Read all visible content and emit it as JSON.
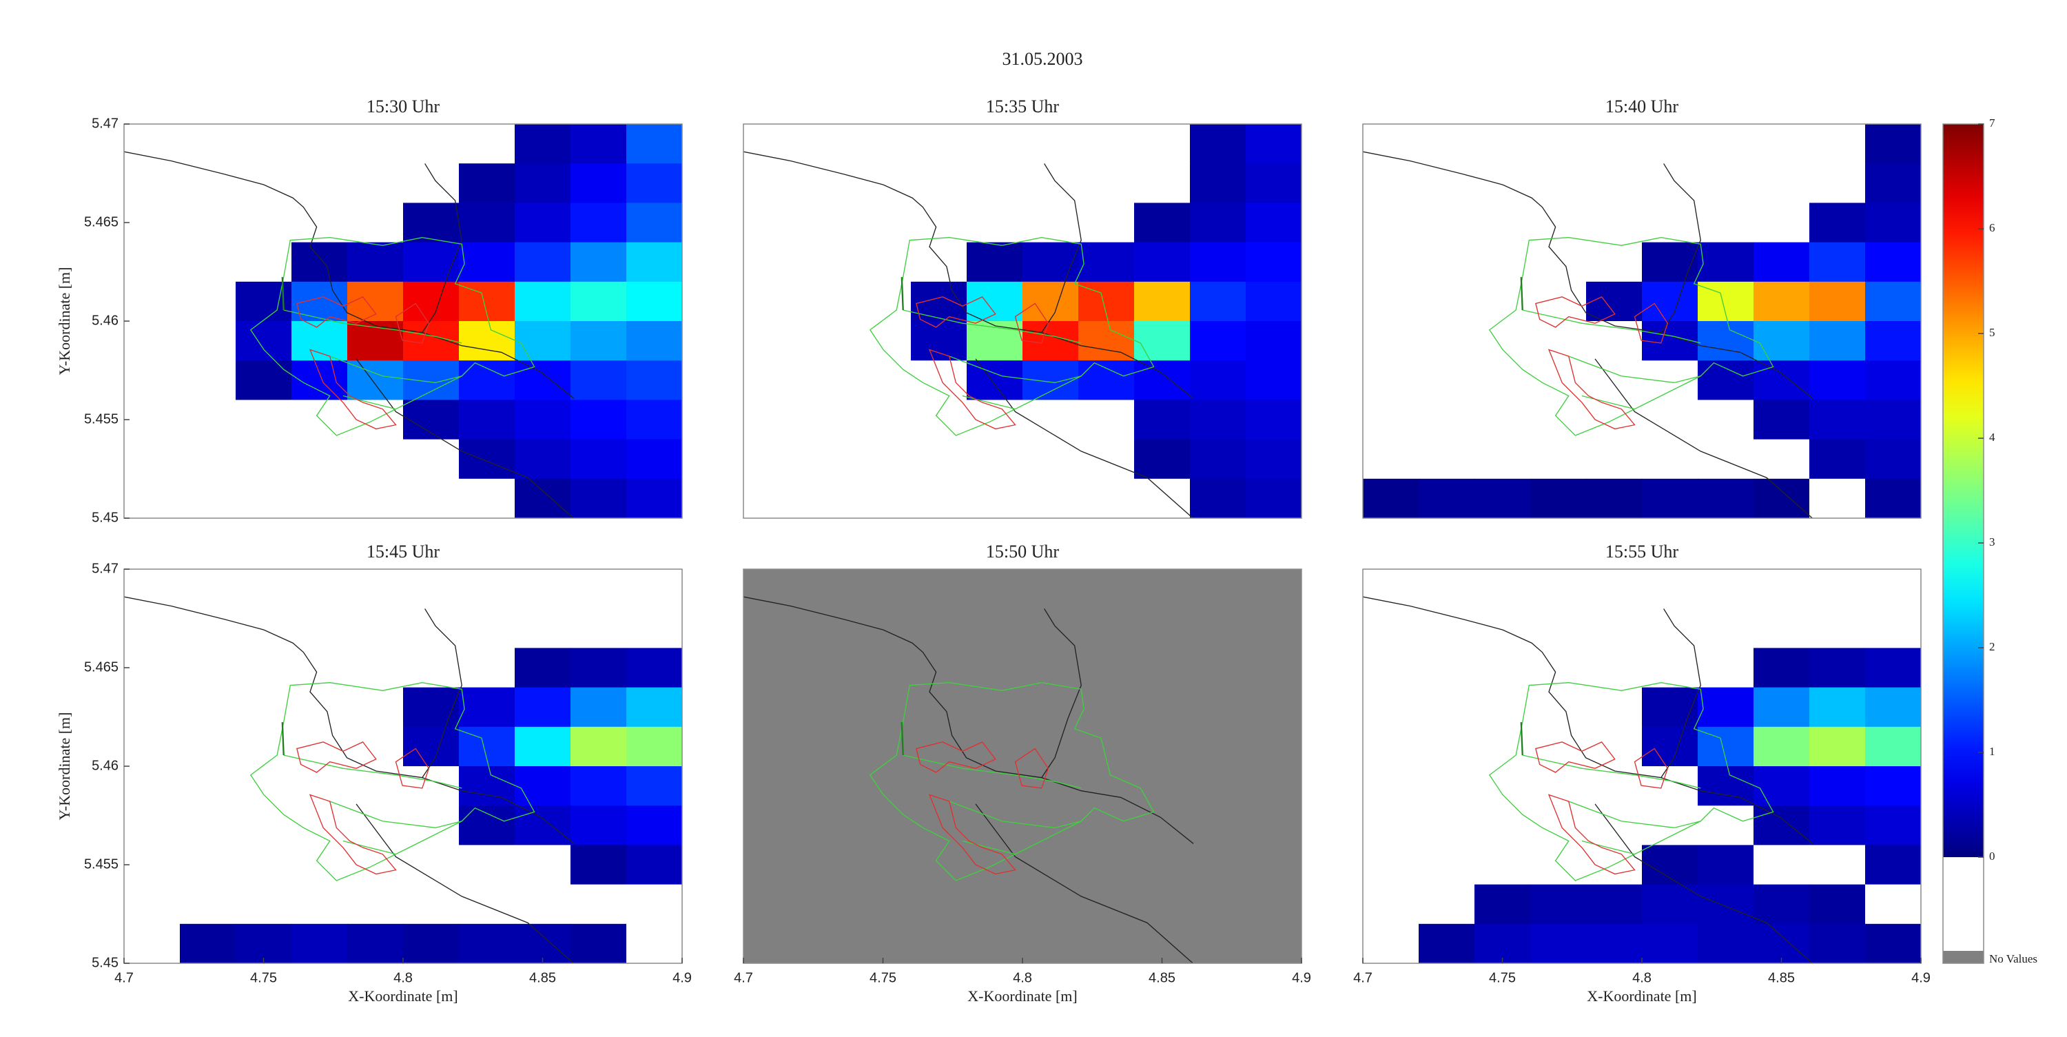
{
  "title": "31.05.2003",
  "colorbar": {
    "colormap": "jet",
    "clim": [
      0,
      7
    ],
    "ticks": [
      0,
      1,
      2,
      3,
      4,
      5,
      6,
      7
    ],
    "below_color": "#ffffff",
    "no_values_color": "#808080",
    "no_values_label": "No Values"
  },
  "chart_data": [
    {
      "type": "heatmap",
      "title": "15:30 Uhr",
      "ylabel": "Y-Koordinate [m]",
      "xlim": [
        4.7,
        4.9
      ],
      "ylim": [
        5.45,
        5.47
      ],
      "yticks": [
        5.45,
        5.455,
        5.46,
        5.465,
        5.47
      ],
      "x": [
        4.71,
        4.73,
        4.75,
        4.77,
        4.79,
        4.81,
        4.83,
        4.85,
        4.87,
        4.89
      ],
      "y": [
        5.469,
        5.467,
        5.465,
        5.463,
        5.461,
        5.459,
        5.457,
        5.455,
        5.453,
        5.451
      ],
      "values": [
        [
          0,
          0,
          0,
          0,
          0,
          0,
          0,
          0.3,
          0.5,
          1.5
        ],
        [
          0,
          0,
          0,
          0,
          0,
          0,
          0.2,
          0.4,
          0.8,
          1.2
        ],
        [
          0,
          0,
          0,
          0,
          0,
          0.2,
          0.3,
          0.6,
          1.0,
          1.5
        ],
        [
          0,
          0,
          0,
          0.2,
          0.4,
          0.6,
          0.8,
          1.2,
          1.8,
          2.3
        ],
        [
          0,
          0,
          0.3,
          1.5,
          5.5,
          6.2,
          5.8,
          2.5,
          2.8,
          2.6
        ],
        [
          0,
          0,
          0.5,
          2.5,
          6.5,
          6.0,
          4.5,
          2.2,
          2.0,
          1.8
        ],
        [
          0,
          0,
          0.2,
          0.8,
          1.8,
          1.5,
          1.0,
          0.9,
          1.2,
          1.3
        ],
        [
          0,
          0,
          0,
          0,
          0,
          0.3,
          0.5,
          0.7,
          0.9,
          1.0
        ],
        [
          0,
          0,
          0,
          0,
          0,
          0,
          0.3,
          0.5,
          0.7,
          0.8
        ],
        [
          0,
          0,
          0,
          0,
          0,
          0,
          0,
          0.2,
          0.4,
          0.6
        ]
      ]
    },
    {
      "type": "heatmap",
      "title": "15:35 Uhr",
      "xlim": [
        4.7,
        4.9
      ],
      "ylim": [
        5.45,
        5.47
      ],
      "x": [
        4.71,
        4.73,
        4.75,
        4.77,
        4.79,
        4.81,
        4.83,
        4.85,
        4.87,
        4.89
      ],
      "y": [
        5.469,
        5.467,
        5.465,
        5.463,
        5.461,
        5.459,
        5.457,
        5.455,
        5.453,
        5.451
      ],
      "values": [
        [
          0,
          0,
          0,
          0,
          0,
          0,
          0,
          0,
          0.3,
          0.6
        ],
        [
          0,
          0,
          0,
          0,
          0,
          0,
          0,
          0,
          0.3,
          0.5
        ],
        [
          0,
          0,
          0,
          0,
          0,
          0,
          0,
          0.2,
          0.4,
          0.7
        ],
        [
          0,
          0,
          0,
          0,
          0.2,
          0.4,
          0.5,
          0.6,
          0.8,
          0.9
        ],
        [
          0,
          0,
          0,
          0.3,
          2.5,
          5.2,
          5.8,
          4.8,
          1.2,
          1.0
        ],
        [
          0,
          0,
          0,
          0.4,
          3.5,
          6.0,
          5.5,
          3.0,
          0.9,
          0.8
        ],
        [
          0,
          0,
          0,
          0,
          0.6,
          1.2,
          1.0,
          0.8,
          0.7,
          0.8
        ],
        [
          0,
          0,
          0,
          0,
          0,
          0,
          0,
          0.4,
          0.5,
          0.6
        ],
        [
          0,
          0,
          0,
          0,
          0,
          0,
          0,
          0.2,
          0.4,
          0.5
        ],
        [
          0,
          0,
          0,
          0,
          0,
          0,
          0,
          0,
          0.3,
          0.4
        ]
      ]
    },
    {
      "type": "heatmap",
      "title": "15:40 Uhr",
      "xlim": [
        4.7,
        4.9
      ],
      "ylim": [
        5.45,
        5.47
      ],
      "x": [
        4.71,
        4.73,
        4.75,
        4.77,
        4.79,
        4.81,
        4.83,
        4.85,
        4.87,
        4.89
      ],
      "y": [
        5.469,
        5.467,
        5.465,
        5.463,
        5.461,
        5.459,
        5.457,
        5.455,
        5.453,
        5.451
      ],
      "values": [
        [
          0,
          0,
          0,
          0,
          0,
          0,
          0,
          0,
          0,
          0.2
        ],
        [
          0,
          0,
          0,
          0,
          0,
          0,
          0,
          0,
          0,
          0.3
        ],
        [
          0,
          0,
          0,
          0,
          0,
          0,
          0,
          0,
          0.3,
          0.4
        ],
        [
          0,
          0,
          0,
          0,
          0,
          0.2,
          0.4,
          0.8,
          1.2,
          0.9
        ],
        [
          0,
          0,
          0,
          0,
          0.3,
          1.0,
          4.2,
          5.0,
          5.2,
          1.5
        ],
        [
          0,
          0,
          0,
          0,
          0,
          0.5,
          1.5,
          2.0,
          1.8,
          1.0
        ],
        [
          0,
          0,
          0,
          0,
          0,
          0,
          0.4,
          0.6,
          0.8,
          0.7
        ],
        [
          0,
          0,
          0,
          0,
          0,
          0,
          0,
          0.3,
          0.5,
          0.5
        ],
        [
          0,
          0,
          0,
          0,
          0,
          0,
          0,
          0,
          0.3,
          0.4
        ],
        [
          0.1,
          0.2,
          0.2,
          0.1,
          0.1,
          0.2,
          0.2,
          0.1,
          0,
          0.2
        ]
      ]
    },
    {
      "type": "heatmap",
      "title": "15:45 Uhr",
      "xlabel": "X-Koordinate [m]",
      "ylabel": "Y-Koordinate [m]",
      "xlim": [
        4.7,
        4.9
      ],
      "ylim": [
        5.45,
        5.47
      ],
      "xticks": [
        4.7,
        4.75,
        4.8,
        4.85,
        4.9
      ],
      "yticks": [
        5.45,
        5.455,
        5.46,
        5.465,
        5.47
      ],
      "x": [
        4.71,
        4.73,
        4.75,
        4.77,
        4.79,
        4.81,
        4.83,
        4.85,
        4.87,
        4.89
      ],
      "y": [
        5.469,
        5.467,
        5.465,
        5.463,
        5.461,
        5.459,
        5.457,
        5.455,
        5.453,
        5.451
      ],
      "values": [
        [
          0,
          0,
          0,
          0,
          0,
          0,
          0,
          0,
          0,
          0
        ],
        [
          0,
          0,
          0,
          0,
          0,
          0,
          0,
          0,
          0,
          0
        ],
        [
          0,
          0,
          0,
          0,
          0,
          0,
          0,
          0.2,
          0.3,
          0.4
        ],
        [
          0,
          0,
          0,
          0,
          0,
          0.3,
          0.6,
          1.0,
          1.8,
          2.2
        ],
        [
          0,
          0,
          0,
          0,
          0,
          0.4,
          1.2,
          2.5,
          3.8,
          3.6
        ],
        [
          0,
          0,
          0,
          0,
          0,
          0,
          0.5,
          0.8,
          1.0,
          1.2
        ],
        [
          0,
          0,
          0,
          0,
          0,
          0,
          0.3,
          0.5,
          0.7,
          0.8
        ],
        [
          0,
          0,
          0,
          0,
          0,
          0,
          0,
          0,
          0.2,
          0.4
        ],
        [
          0,
          0,
          0,
          0,
          0,
          0,
          0,
          0,
          0,
          0
        ],
        [
          0,
          0.2,
          0.3,
          0.4,
          0.3,
          0.2,
          0.3,
          0.3,
          0.2,
          0
        ]
      ]
    },
    {
      "type": "heatmap",
      "title": "15:50 Uhr",
      "xlabel": "X-Koordinate [m]",
      "xlim": [
        4.7,
        4.9
      ],
      "ylim": [
        5.45,
        5.47
      ],
      "xticks": [
        4.7,
        4.75,
        4.8,
        4.85,
        4.9
      ],
      "x": [
        4.71,
        4.73,
        4.75,
        4.77,
        4.79,
        4.81,
        4.83,
        4.85,
        4.87,
        4.89
      ],
      "y": [
        5.469,
        5.467,
        5.465,
        5.463,
        5.461,
        5.459,
        5.457,
        5.455,
        5.453,
        5.451
      ],
      "values": [
        [
          null,
          null,
          null,
          null,
          null,
          null,
          null,
          null,
          null,
          null
        ],
        [
          null,
          null,
          null,
          null,
          null,
          null,
          null,
          null,
          null,
          null
        ],
        [
          null,
          null,
          null,
          null,
          null,
          null,
          null,
          null,
          null,
          null
        ],
        [
          null,
          null,
          null,
          null,
          null,
          null,
          null,
          null,
          null,
          null
        ],
        [
          null,
          null,
          null,
          null,
          null,
          null,
          null,
          null,
          null,
          null
        ],
        [
          null,
          null,
          null,
          null,
          null,
          null,
          null,
          null,
          null,
          null
        ],
        [
          null,
          null,
          null,
          null,
          null,
          null,
          null,
          null,
          null,
          null
        ],
        [
          null,
          null,
          null,
          null,
          null,
          null,
          null,
          null,
          null,
          null
        ],
        [
          null,
          null,
          null,
          null,
          null,
          null,
          null,
          null,
          null,
          null
        ],
        [
          null,
          null,
          null,
          null,
          null,
          null,
          null,
          null,
          null,
          null
        ]
      ]
    },
    {
      "type": "heatmap",
      "title": "15:55 Uhr",
      "xlabel": "X-Koordinate [m]",
      "xlim": [
        4.7,
        4.9
      ],
      "ylim": [
        5.45,
        5.47
      ],
      "xticks": [
        4.7,
        4.75,
        4.8,
        4.85,
        4.9
      ],
      "x": [
        4.71,
        4.73,
        4.75,
        4.77,
        4.79,
        4.81,
        4.83,
        4.85,
        4.87,
        4.89
      ],
      "y": [
        5.469,
        5.467,
        5.465,
        5.463,
        5.461,
        5.459,
        5.457,
        5.455,
        5.453,
        5.451
      ],
      "values": [
        [
          0,
          0,
          0,
          0,
          0,
          0,
          0,
          0,
          0,
          0
        ],
        [
          0,
          0,
          0,
          0,
          0,
          0,
          0,
          0,
          0,
          0
        ],
        [
          0,
          0,
          0,
          0,
          0,
          0,
          0,
          0.2,
          0.3,
          0.4
        ],
        [
          0,
          0,
          0,
          0,
          0,
          0.3,
          0.8,
          1.8,
          2.2,
          2.0
        ],
        [
          0,
          0,
          0,
          0,
          0,
          0.4,
          1.5,
          3.5,
          3.8,
          3.2
        ],
        [
          0,
          0,
          0,
          0,
          0,
          0,
          0.4,
          0.6,
          0.8,
          0.9
        ],
        [
          0,
          0,
          0,
          0,
          0,
          0,
          0,
          0.3,
          0.5,
          0.6
        ],
        [
          0,
          0,
          0,
          0,
          0,
          0.2,
          0.3,
          0,
          0,
          0.3
        ],
        [
          0,
          0,
          0.2,
          0.3,
          0.3,
          0.4,
          0.4,
          0.3,
          0.2,
          0
        ],
        [
          0,
          0.2,
          0.4,
          0.5,
          0.5,
          0.5,
          0.4,
          0.4,
          0.3,
          0.2
        ]
      ]
    }
  ]
}
